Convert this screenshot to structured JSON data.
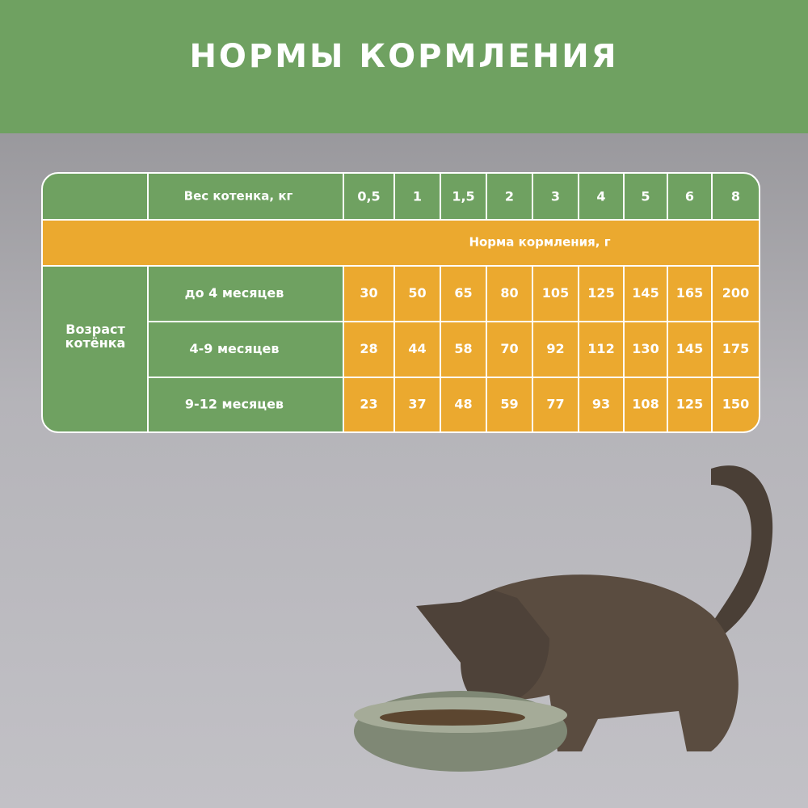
{
  "header": {
    "title": "НОРМЫ КОРМЛЕНИЯ"
  },
  "table": {
    "weight_label": "Вес котенка, кг",
    "weights": [
      "0,5",
      "1",
      "1,5",
      "2",
      "3",
      "4",
      "5",
      "6",
      "8"
    ],
    "norm_label": "Норма кормления, г",
    "age_label": "Возраст котёнка",
    "rows": [
      {
        "label": "до 4 месяцев",
        "values": [
          "30",
          "50",
          "65",
          "80",
          "105",
          "125",
          "145",
          "165",
          "200"
        ]
      },
      {
        "label": "4-9 месяцев",
        "values": [
          "28",
          "44",
          "58",
          "70",
          "92",
          "112",
          "130",
          "145",
          "175"
        ]
      },
      {
        "label": "9-12 месяцев",
        "values": [
          "23",
          "37",
          "48",
          "59",
          "77",
          "93",
          "108",
          "125",
          "150"
        ]
      }
    ]
  }
}
